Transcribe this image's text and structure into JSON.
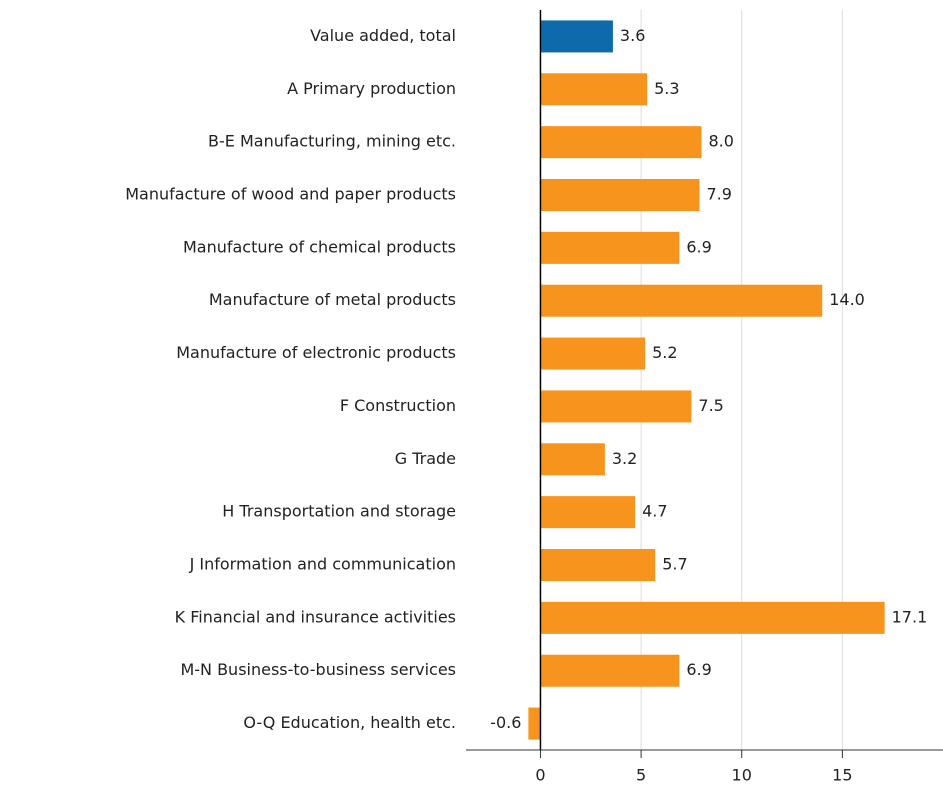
{
  "chart_data": {
    "type": "barh",
    "categories": [
      "Value added, total",
      "A Primary production",
      "B-E Manufacturing, mining etc.",
      "Manufacture of wood and paper products",
      "Manufacture of chemical products",
      "Manufacture of metal products",
      "Manufacture of electronic products",
      "F Construction",
      "G Trade",
      "H Transportation and storage",
      "J Information and communication",
      "K Financial and insurance activities",
      "M-N Business-to-business services",
      "O-Q Education, health etc."
    ],
    "values": [
      3.6,
      5.3,
      8.0,
      7.9,
      6.9,
      14.0,
      5.2,
      7.5,
      3.2,
      4.7,
      5.7,
      17.1,
      6.9,
      -0.6
    ],
    "value_labels": [
      "3.6",
      "5.3",
      "8.0",
      "7.9",
      "6.9",
      "14.0",
      "5.2",
      "7.5",
      "3.2",
      "4.7",
      "5.7",
      "17.1",
      "6.9",
      "-0.6"
    ],
    "colors": [
      "#0f6aab",
      "#f7941d",
      "#f7941d",
      "#f7941d",
      "#f7941d",
      "#f7941d",
      "#f7941d",
      "#f7941d",
      "#f7941d",
      "#f7941d",
      "#f7941d",
      "#f7941d",
      "#f7941d",
      "#f7941d"
    ],
    "xlim": [
      -3.7,
      20
    ],
    "xticks": [
      0,
      5,
      10,
      15
    ],
    "grid": true
  }
}
